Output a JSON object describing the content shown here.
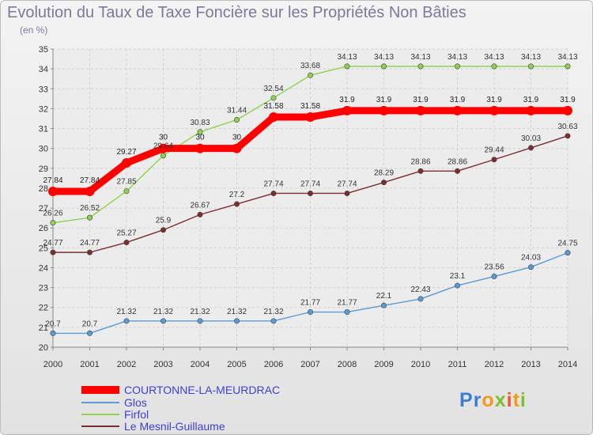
{
  "chart_data": {
    "type": "line",
    "title": "Evolution du Taux de Taxe Foncière sur les Propriétés Non Bâties",
    "subtitle": "(en %)",
    "xlabel": "",
    "ylabel": "",
    "ylim": [
      20,
      35
    ],
    "x": [
      "2000",
      "2001",
      "2002",
      "2003",
      "2004",
      "2005",
      "2006",
      "2007",
      "2008",
      "2009",
      "2010",
      "2011",
      "2012",
      "2013",
      "2014"
    ],
    "y_ticks": [
      "20",
      "21",
      "22",
      "23",
      "24",
      "25",
      "26",
      "27",
      "28",
      "29",
      "30",
      "31",
      "32",
      "33",
      "34",
      "35"
    ],
    "grid": true,
    "legend_position": "bottom-left",
    "series": [
      {
        "name": "COURTONNE-LA-MEURDRAC",
        "color": "#ff0000",
        "thick": true,
        "values": [
          27.84,
          27.84,
          29.27,
          30,
          30,
          30,
          31.58,
          31.58,
          31.9,
          31.9,
          31.9,
          31.9,
          31.9,
          31.9,
          31.9
        ],
        "labels": [
          "27.84",
          "27.84",
          "29.27",
          "30",
          "30",
          "30",
          "31.58",
          "31.58",
          "31.9",
          "31.9",
          "31.9",
          "31.9",
          "31.9",
          "31.9",
          "31.9"
        ]
      },
      {
        "name": "Glos",
        "color": "#5b9bd5",
        "thick": false,
        "values": [
          20.7,
          20.7,
          21.32,
          21.32,
          21.32,
          21.32,
          21.32,
          21.77,
          21.77,
          22.1,
          22.43,
          23.1,
          23.56,
          24.03,
          24.75
        ],
        "labels": [
          "20.7",
          "20.7",
          "21.32",
          "21.32",
          "21.32",
          "21.32",
          "21.32",
          "21.77",
          "21.77",
          "22.1",
          "22.43",
          "23.1",
          "23.56",
          "24.03",
          "24.75"
        ]
      },
      {
        "name": "Firfol",
        "color": "#8fd14f",
        "thick": false,
        "values": [
          26.26,
          26.52,
          27.85,
          29.64,
          30.83,
          31.44,
          32.54,
          33.68,
          34.13,
          34.13,
          34.13,
          34.13,
          34.13,
          34.13,
          34.13
        ],
        "labels": [
          "26.26",
          "26.52",
          "27.85",
          "29.64",
          "30.83",
          "31.44",
          "32.54",
          "33.68",
          "34.13",
          "34.13",
          "34.13",
          "34.13",
          "34.13",
          "34.13",
          "34.13"
        ]
      },
      {
        "name": "Le Mesnil-Guillaume",
        "color": "#7a2e2e",
        "thick": false,
        "values": [
          24.77,
          24.77,
          25.27,
          25.9,
          26.67,
          27.2,
          27.74,
          27.74,
          27.74,
          28.29,
          28.86,
          28.86,
          29.44,
          30.03,
          30.63
        ],
        "labels": [
          "24.77",
          "24.77",
          "25.27",
          "25.9",
          "26.67",
          "27.2",
          "27.74",
          "27.74",
          "27.74",
          "28.29",
          "28.86",
          "28.86",
          "29.44",
          "30.03",
          "30.63"
        ]
      }
    ]
  },
  "branding": {
    "logo_letters": [
      "P",
      "r",
      "o",
      "x",
      "i",
      "t",
      "i"
    ],
    "logo_colors": [
      "#3a7fd0",
      "#3a7fd0",
      "#f29a1a",
      "#7cbf2f",
      "#e85a2a",
      "#f29a1a",
      "#7cbf2f"
    ]
  }
}
